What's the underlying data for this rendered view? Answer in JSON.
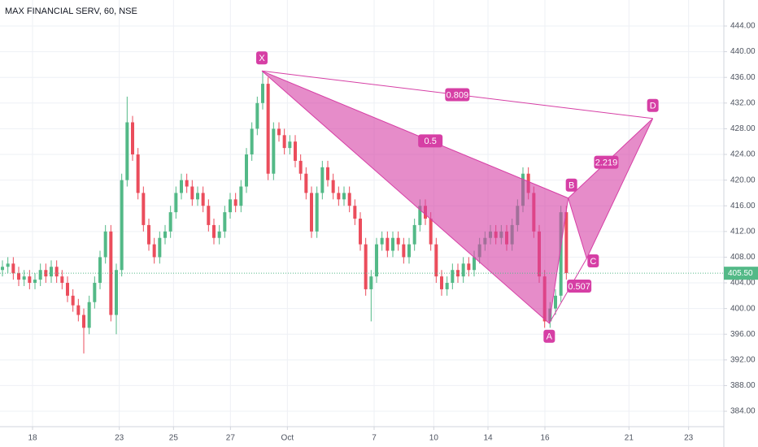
{
  "chart_data": {
    "type": "candlestick",
    "title": "MAX FINANCIAL SERV, 60, NSE",
    "up_color": "#53b987",
    "down_color": "#eb4d5c",
    "pattern_color": "#d63fa5",
    "grid": true,
    "xlim": [
      0,
      133.5
    ],
    "xticks": [
      {
        "value": 6,
        "label": "18"
      },
      {
        "value": 22,
        "label": "23"
      },
      {
        "value": 32,
        "label": "25"
      },
      {
        "value": 42.5,
        "label": "27"
      },
      {
        "value": 53,
        "label": "Oct"
      },
      {
        "value": 69,
        "label": "7"
      },
      {
        "value": 80,
        "label": "10"
      },
      {
        "value": 90,
        "label": "14"
      },
      {
        "value": 100.5,
        "label": "16"
      },
      {
        "value": 116,
        "label": "21"
      },
      {
        "value": 127,
        "label": "23"
      }
    ],
    "ylim": [
      381.6,
      448.05
    ],
    "yticks": [
      {
        "value": 384,
        "label": "384.00"
      },
      {
        "value": 388,
        "label": "388.00"
      },
      {
        "value": 392,
        "label": "392.00"
      },
      {
        "value": 396,
        "label": "396.00"
      },
      {
        "value": 400,
        "label": "400.00"
      },
      {
        "value": 404,
        "label": "404.00"
      },
      {
        "value": 408,
        "label": "408.00"
      },
      {
        "value": 412,
        "label": "412.00"
      },
      {
        "value": 416,
        "label": "416.00"
      },
      {
        "value": 420,
        "label": "420.00"
      },
      {
        "value": 424,
        "label": "424.00"
      },
      {
        "value": 428,
        "label": "428.00"
      },
      {
        "value": 432,
        "label": "432.00"
      },
      {
        "value": 436,
        "label": "436.00"
      },
      {
        "value": 440,
        "label": "440.00"
      },
      {
        "value": 444,
        "label": "444.00"
      }
    ],
    "last_price": {
      "value": 405.5,
      "label": "405.50"
    },
    "open": [
      406,
      406.5,
      407,
      405.5,
      404.5,
      405,
      404,
      404.5,
      406,
      405,
      406.5,
      405,
      404,
      402,
      400.5,
      399,
      397,
      401,
      404,
      408,
      412,
      399,
      406,
      420,
      429,
      424,
      418,
      413,
      410,
      408,
      411,
      412,
      415,
      418,
      420,
      419,
      417,
      418,
      416,
      413,
      411,
      412,
      415,
      417,
      416,
      419,
      424,
      428,
      432,
      435,
      421,
      428,
      427,
      425,
      426,
      423,
      421,
      418,
      412,
      418,
      422,
      420,
      418,
      417,
      418,
      416,
      414,
      410,
      403,
      405,
      410,
      411,
      409,
      411,
      410,
      408,
      410,
      413,
      416,
      414,
      410,
      405,
      403,
      404,
      406,
      405,
      407,
      406,
      408,
      410,
      411,
      412,
      411,
      412,
      410,
      413,
      416,
      421,
      418,
      412,
      405,
      398,
      400,
      402,
      415
    ],
    "high": [
      407.5,
      408,
      408,
      406.5,
      406,
      406,
      405.5,
      407,
      407,
      407.5,
      407.5,
      406,
      405,
      403,
      401.5,
      400,
      402,
      405,
      409,
      413,
      413,
      407,
      421,
      433,
      430,
      425,
      419,
      414,
      411,
      412,
      413,
      416,
      419,
      421,
      421,
      420,
      419,
      419,
      417,
      414,
      413,
      416,
      418,
      418,
      420,
      425,
      429,
      433,
      437,
      436,
      429,
      429,
      428,
      427,
      427,
      424,
      422,
      419,
      419,
      423,
      423,
      421,
      419,
      419,
      419,
      417,
      415,
      411,
      406,
      411,
      412,
      412,
      412,
      412,
      411,
      411,
      414,
      417,
      417,
      415,
      411,
      406,
      405,
      407,
      407,
      408,
      408,
      409,
      411,
      412,
      413,
      413,
      413,
      413,
      414,
      417,
      422,
      422,
      419,
      413,
      406,
      401,
      403,
      416,
      416
    ],
    "low": [
      405,
      405.5,
      404.5,
      403.5,
      403.5,
      403,
      403,
      403.5,
      404,
      404,
      404,
      403,
      401,
      399.5,
      398,
      393,
      396,
      400,
      403,
      407,
      398,
      396,
      405,
      419,
      423,
      417,
      412,
      409,
      407,
      407,
      410,
      411,
      414,
      417,
      418,
      416,
      416,
      415,
      412,
      410,
      410,
      411,
      414,
      415,
      415,
      418,
      423,
      427,
      431,
      420,
      420,
      426,
      424,
      424,
      422,
      420,
      417,
      411,
      411,
      417,
      419,
      417,
      416,
      416,
      415,
      413,
      409,
      402,
      398,
      404,
      409,
      408,
      408,
      409,
      407,
      407,
      409,
      412,
      413,
      409,
      404,
      402,
      402,
      403,
      404,
      404,
      405,
      405,
      407,
      409,
      410,
      410,
      410,
      409,
      409,
      412,
      415,
      417,
      411,
      404,
      397,
      397,
      399,
      401,
      404.5
    ],
    "close": [
      406.5,
      407,
      405.5,
      404.5,
      405,
      404,
      404.5,
      406,
      405,
      406.5,
      405,
      404,
      402,
      400.5,
      399,
      397,
      401,
      404,
      408,
      412,
      399,
      406,
      420,
      429,
      424,
      418,
      413,
      410,
      408,
      411,
      412,
      415,
      418,
      420,
      419,
      417,
      418,
      416,
      413,
      411,
      412,
      415,
      417,
      416,
      419,
      424,
      428,
      432,
      435,
      421,
      428,
      427,
      425,
      426,
      423,
      421,
      418,
      412,
      418,
      422,
      420,
      418,
      417,
      418,
      416,
      414,
      410,
      403,
      405,
      410,
      411,
      409,
      411,
      410,
      408,
      410,
      413,
      416,
      414,
      410,
      405,
      403,
      404,
      406,
      405,
      407,
      406,
      408,
      410,
      411,
      412,
      411,
      412,
      410,
      413,
      416,
      421,
      418,
      412,
      405,
      398,
      400,
      402,
      415,
      405.5
    ],
    "pattern": {
      "points": [
        {
          "label": "X",
          "x": 48.3,
          "price": 437
        },
        {
          "label": "A",
          "x": 101.3,
          "price": 397.7
        },
        {
          "label": "B",
          "x": 104.8,
          "price": 417.2
        },
        {
          "label": "C",
          "x": 108.2,
          "price": 407.8
        },
        {
          "label": "D",
          "x": 120.4,
          "price": 429.6
        }
      ],
      "ratios": [
        0.809,
        0.5,
        2.219,
        0.507
      ]
    }
  }
}
